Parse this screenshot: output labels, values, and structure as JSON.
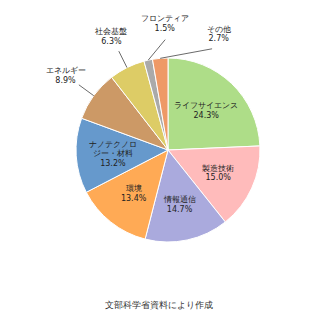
{
  "chart_data": {
    "type": "pie",
    "categories": [
      "ライフサイエンス",
      "製造技術",
      "情報通信",
      "環境",
      "ナノテクノロ\nジー・材料",
      "エネルギー",
      "社会基盤",
      "フロンティア",
      "その他"
    ],
    "values": [
      24.3,
      15.0,
      14.7,
      13.4,
      13.2,
      8.9,
      6.3,
      1.5,
      2.7
    ],
    "value_labels": [
      "24.3%",
      "15.0%",
      "14.7%",
      "13.4%",
      "13.2%",
      "8.9%",
      "6.3%",
      "1.5%",
      "2.7%"
    ],
    "colors": [
      "#aedd88",
      "#ffbbbb",
      "#aaaadd",
      "#ffaa55",
      "#6699cc",
      "#cc9966",
      "#ddcc66",
      "#aaaaaa",
      "#ee9966"
    ],
    "data_labels": true,
    "annotations": [
      "文部科学省資料により作成"
    ]
  }
}
